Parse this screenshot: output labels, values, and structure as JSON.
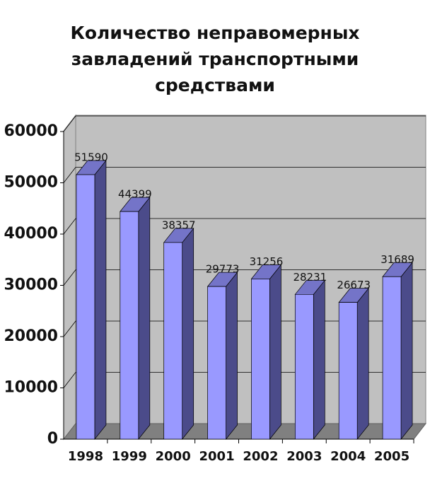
{
  "chart_data": {
    "type": "bar3d",
    "title": "Количество неправомерных завладений транспортными средствами",
    "categories": [
      "1998",
      "1999",
      "2000",
      "2001",
      "2002",
      "2003",
      "2004",
      "2005"
    ],
    "values": [
      51590,
      44399,
      38357,
      29773,
      31256,
      28231,
      26673,
      31689
    ],
    "color": "#9999ff",
    "ylim": [
      0,
      60000
    ],
    "yticks": [
      0,
      10000,
      20000,
      30000,
      40000,
      50000,
      60000
    ],
    "grid": true
  }
}
